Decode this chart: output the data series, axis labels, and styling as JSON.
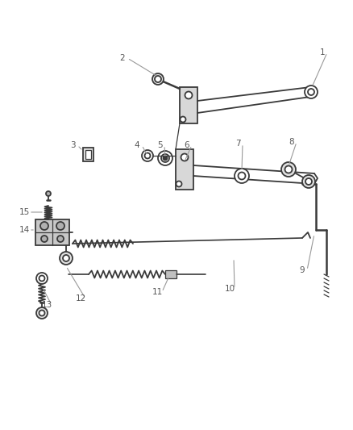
{
  "bg_color": "#ffffff",
  "line_color": "#3a3a3a",
  "label_color": "#555555",
  "label_fontsize": 7.5,
  "leader_color": "#999999",
  "lw_main": 1.3,
  "lw_thin": 0.9
}
